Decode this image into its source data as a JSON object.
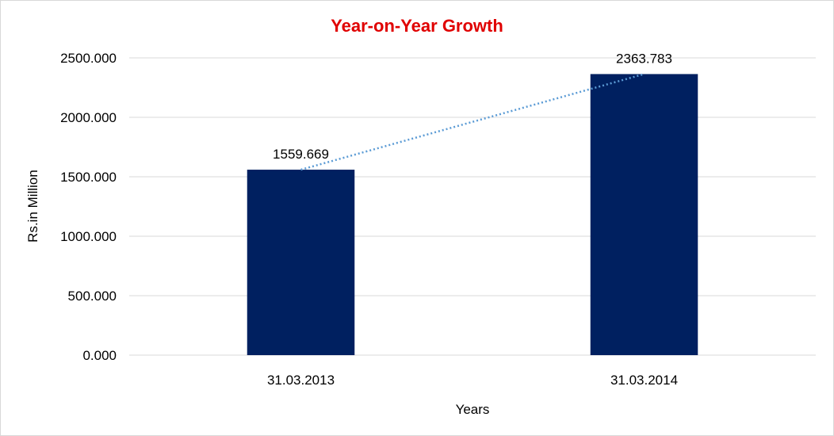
{
  "chart_data": {
    "type": "bar",
    "title": "Year-on-Year Growth",
    "xlabel": "Years",
    "ylabel": "Rs.in Million",
    "categories": [
      "31.03.2013",
      "31.03.2014"
    ],
    "series": [
      {
        "values": [
          1559.669,
          2363.783
        ]
      }
    ],
    "data_labels": [
      "1559.669",
      "2363.783"
    ],
    "ylim": [
      0,
      2500
    ],
    "yticks": [
      0,
      500,
      1000,
      1500,
      2000,
      2500
    ],
    "ytick_labels": [
      "0.000",
      "500.000",
      "1000.000",
      "1500.000",
      "2000.000",
      "2500.000"
    ],
    "grid": true,
    "trendline": "linear, dotted",
    "colors": {
      "title": "#e00000",
      "bar": "#002060",
      "trendline": "#5b9bd5",
      "grid": "#d9d9d9"
    }
  }
}
